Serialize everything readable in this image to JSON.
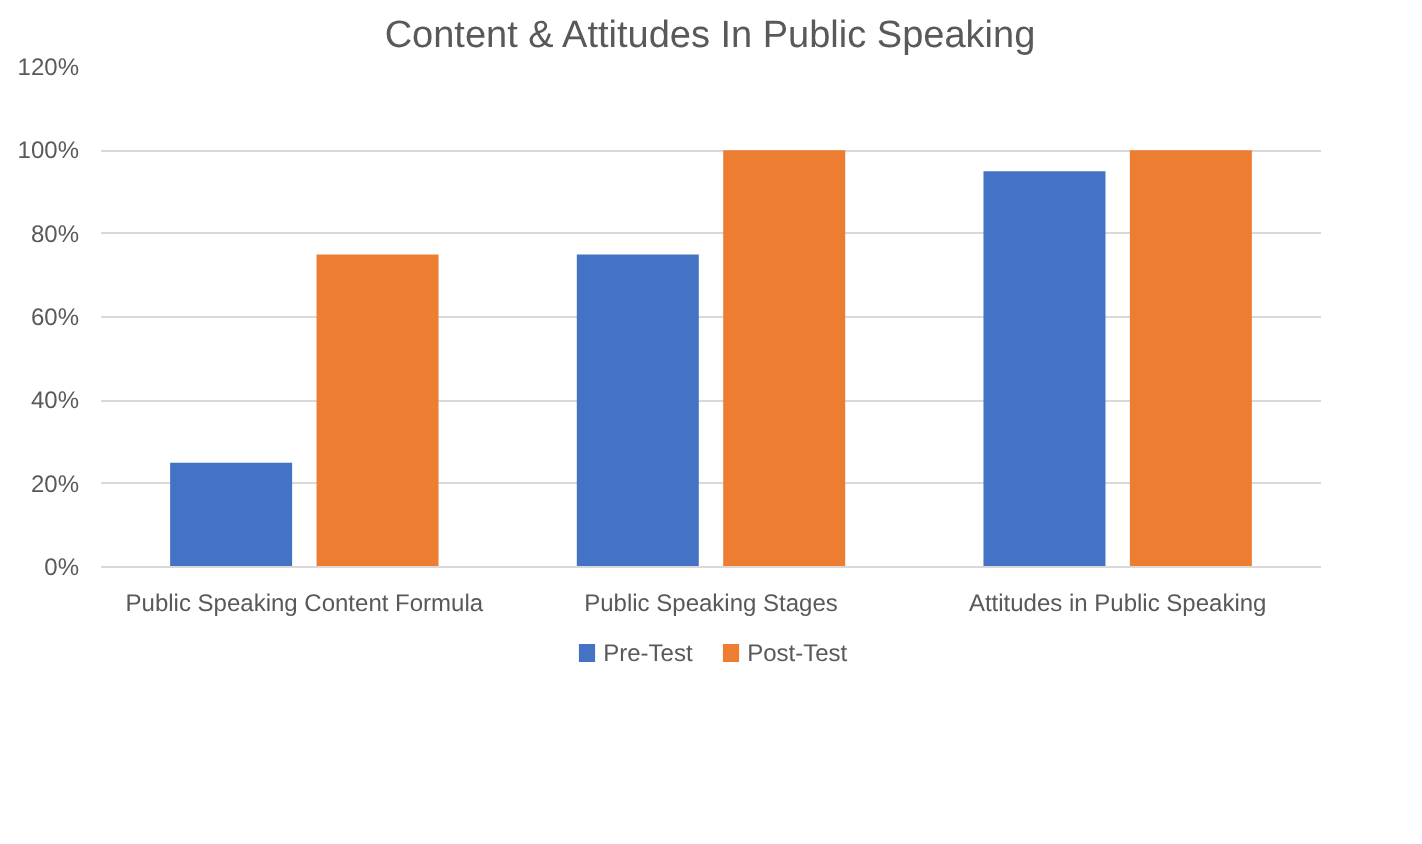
{
  "chart_data": {
    "type": "bar",
    "title": "Content & Attitudes In Public Speaking",
    "categories": [
      "Public Speaking Content Formula",
      "Public Speaking Stages",
      "Attitudes in Public Speaking"
    ],
    "series": [
      {
        "name": "Pre-Test",
        "color": "#4472c4",
        "values": [
          25,
          75,
          95
        ]
      },
      {
        "name": "Post-Test",
        "color": "#ed7d31",
        "values": [
          75,
          100,
          100
        ]
      }
    ],
    "ylim": [
      0,
      120
    ],
    "yticks": [
      {
        "value": 0,
        "label": "0%"
      },
      {
        "value": 20,
        "label": "20%"
      },
      {
        "value": 40,
        "label": "40%"
      },
      {
        "value": 60,
        "label": "60%"
      },
      {
        "value": 80,
        "label": "80%"
      },
      {
        "value": 100,
        "label": "100%"
      },
      {
        "value": 120,
        "label": "120%"
      }
    ],
    "grid": "y",
    "legend": "bottom"
  }
}
